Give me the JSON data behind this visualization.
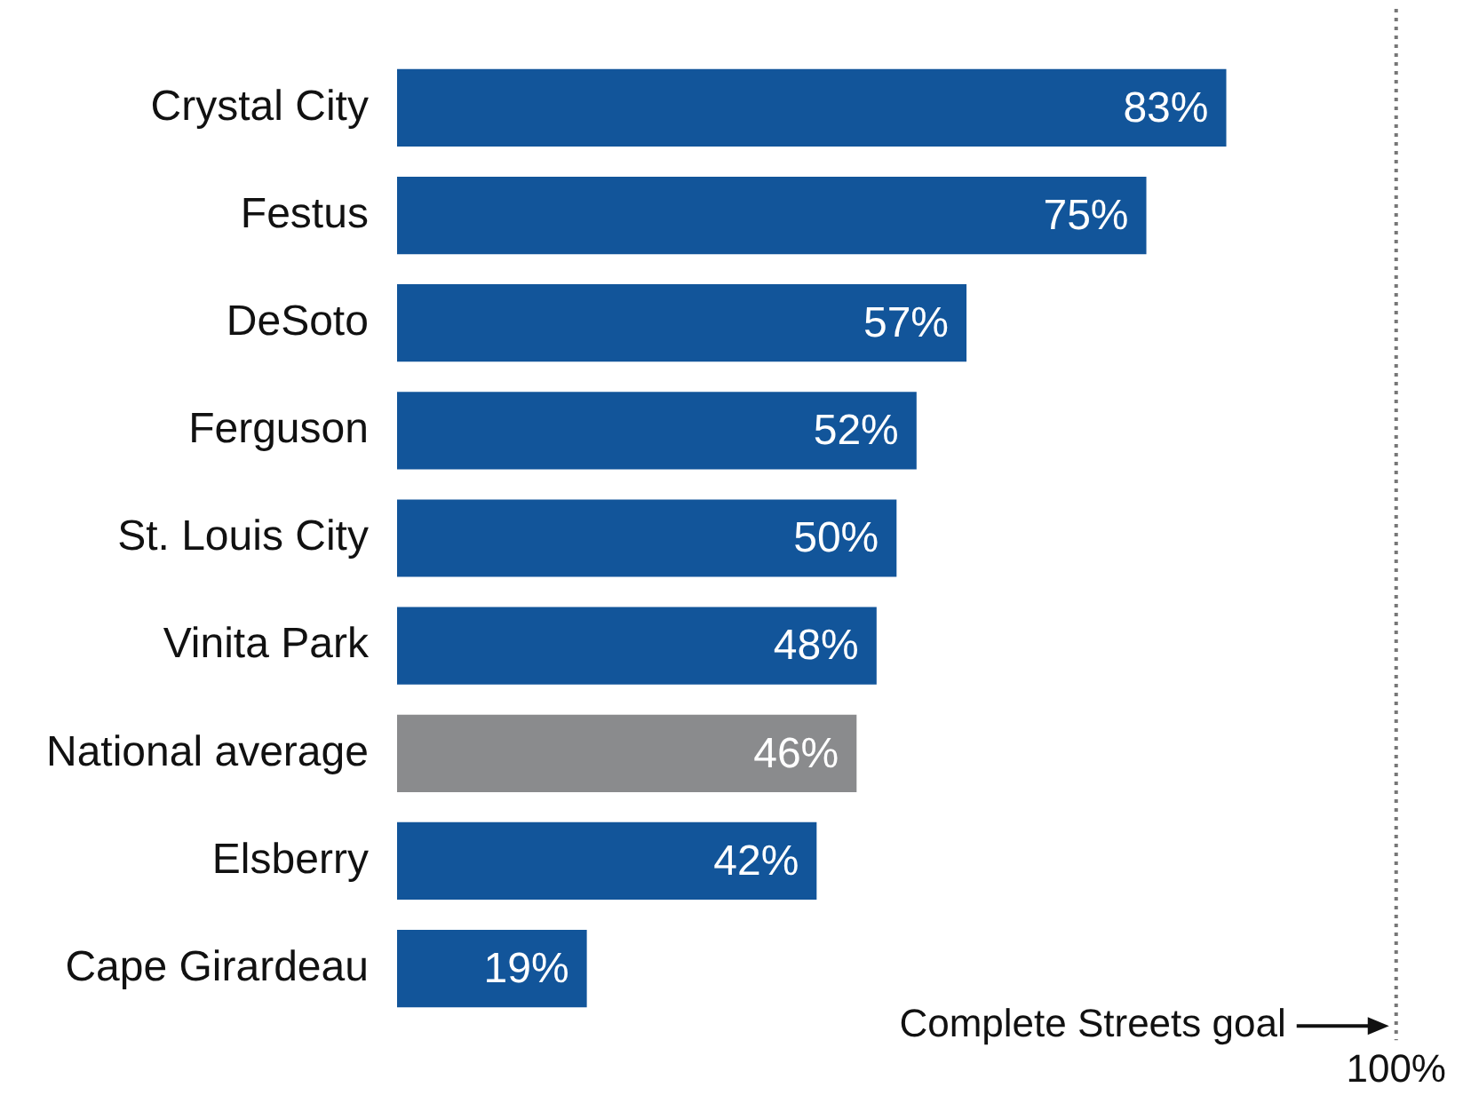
{
  "chart_data": {
    "type": "bar",
    "orientation": "horizontal",
    "categories": [
      "Crystal City",
      "Festus",
      "DeSoto",
      "Ferguson",
      "St. Louis City",
      "Vinita Park",
      "National average",
      "Elsberry",
      "Cape Girardeau"
    ],
    "values": [
      83,
      75,
      57,
      52,
      50,
      48,
      46,
      42,
      19
    ],
    "colors": [
      "#12559a",
      "#12559a",
      "#12559a",
      "#12559a",
      "#12559a",
      "#12559a",
      "#8a8b8d",
      "#12559a",
      "#12559a"
    ],
    "xlim": [
      0,
      100
    ],
    "xticks": [
      {
        "value": 100,
        "label": "100%"
      }
    ],
    "value_labels": [
      "83%",
      "75%",
      "57%",
      "52%",
      "50%",
      "48%",
      "46%",
      "42%",
      "19%"
    ],
    "grid": false,
    "legend": false,
    "ref_lines": [
      {
        "axis": "x",
        "value": 100,
        "label": "Complete Streets goal",
        "line_style": "dotted",
        "color": "#777777"
      }
    ]
  }
}
